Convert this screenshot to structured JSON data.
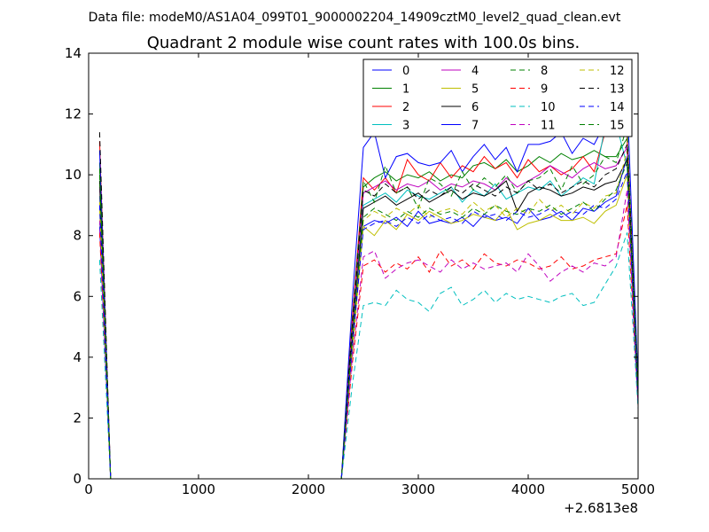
{
  "header": {
    "filename": "Data file: modeM0/AS1A04_099T01_9000002204_14909cztM0_level2_quad_clean.evt"
  },
  "chart_data": {
    "type": "line",
    "title": "Quadrant 2 module wise count rates with 100.0s bins.",
    "xlabel": "",
    "ylabel": "",
    "xlim": [
      0,
      5000
    ],
    "ylim": [
      0,
      14
    ],
    "xticks": [
      "0",
      "1000",
      "2000",
      "3000",
      "4000",
      "5000"
    ],
    "yticks": [
      "0",
      "2",
      "4",
      "6",
      "8",
      "10",
      "12",
      "14"
    ],
    "x_offset_label": "+2.6813e8",
    "grid": false,
    "legend": {
      "placement": "top-right",
      "columns": 4
    },
    "x": [
      100,
      200,
      300,
      400,
      500,
      600,
      700,
      800,
      900,
      1000,
      1100,
      1200,
      1300,
      1400,
      1500,
      1600,
      1700,
      1800,
      1900,
      2000,
      2100,
      2200,
      2300,
      2400,
      2500,
      2600,
      2700,
      2800,
      2900,
      3000,
      3100,
      3200,
      3300,
      3400,
      3500,
      3600,
      3700,
      3800,
      3900,
      4000,
      4100,
      4200,
      4300,
      4400,
      4500,
      4600,
      4700,
      4800,
      4900,
      5000
    ],
    "series": [
      {
        "name": "0",
        "color": "#0000ff",
        "dash": "solid",
        "values": [
          8.3,
          0,
          0,
          0,
          0,
          0,
          0,
          0,
          0,
          0,
          0,
          0,
          0,
          0,
          0,
          0,
          0,
          0,
          0,
          0,
          0,
          0,
          0,
          4.3,
          8.3,
          8.5,
          8.4,
          8.6,
          8.3,
          8.8,
          8.4,
          8.5,
          8.4,
          8.6,
          8.3,
          8.7,
          8.5,
          8.6,
          8.4,
          8.9,
          8.5,
          8.6,
          8.8,
          8.5,
          8.9,
          8.8,
          9.1,
          9.3,
          10.6,
          2.5
        ]
      },
      {
        "name": "1",
        "color": "#008000",
        "dash": "solid",
        "values": [
          10.4,
          0,
          0,
          0,
          0,
          0,
          0,
          0,
          0,
          0,
          0,
          0,
          0,
          0,
          0,
          0,
          0,
          0,
          0,
          0,
          0,
          0,
          0,
          5.3,
          9.6,
          9.9,
          10.1,
          9.8,
          10.0,
          9.9,
          10.1,
          9.8,
          10.0,
          9.9,
          10.3,
          10.4,
          10.2,
          10.5,
          10.1,
          10.3,
          10.6,
          10.4,
          10.7,
          10.5,
          10.6,
          10.8,
          10.6,
          10.6,
          11.2,
          2.8
        ]
      },
      {
        "name": "2",
        "color": "#ff0000",
        "dash": "solid",
        "values": [
          11.1,
          0,
          0,
          0,
          0,
          0,
          0,
          0,
          0,
          0,
          0,
          0,
          0,
          0,
          0,
          0,
          0,
          0,
          0,
          0,
          0,
          0,
          0,
          5.3,
          9.9,
          9.5,
          9.9,
          9.4,
          10.5,
          10.0,
          9.8,
          10.4,
          9.9,
          10.3,
          10.1,
          10.6,
          10.2,
          10.4,
          9.9,
          10.5,
          10.1,
          10.3,
          10.0,
          10.2,
          10.6,
          10.1,
          11.4,
          11.4,
          11.3,
          3.0
        ]
      },
      {
        "name": "3",
        "color": "#00bfbf",
        "dash": "solid",
        "values": [
          9.3,
          0,
          0,
          0,
          0,
          0,
          0,
          0,
          0,
          0,
          0,
          0,
          0,
          0,
          0,
          0,
          0,
          0,
          0,
          0,
          0,
          0,
          0,
          4.8,
          9.0,
          9.2,
          9.4,
          9.1,
          9.5,
          9.3,
          9.2,
          9.4,
          9.6,
          9.1,
          9.5,
          9.3,
          9.7,
          9.2,
          9.4,
          9.6,
          9.5,
          9.8,
          9.3,
          9.6,
          9.9,
          9.7,
          11.6,
          11.7,
          10.3,
          2.7
        ]
      },
      {
        "name": "4",
        "color": "#bf00bf",
        "dash": "solid",
        "values": [
          9.6,
          0,
          0,
          0,
          0,
          0,
          0,
          0,
          0,
          0,
          0,
          0,
          0,
          0,
          0,
          0,
          0,
          0,
          0,
          0,
          0,
          0,
          0,
          5.0,
          9.4,
          9.6,
          9.8,
          9.5,
          9.7,
          9.6,
          9.8,
          9.5,
          9.7,
          9.6,
          9.8,
          9.7,
          9.5,
          9.9,
          9.6,
          9.8,
          10.0,
          10.3,
          10.1,
          9.9,
          10.2,
          10.4,
          10.2,
          10.3,
          10.9,
          2.9
        ]
      },
      {
        "name": "5",
        "color": "#bfbf00",
        "dash": "solid",
        "values": [
          8.9,
          0,
          0,
          0,
          0,
          0,
          0,
          0,
          0,
          0,
          0,
          0,
          0,
          0,
          0,
          0,
          0,
          0,
          0,
          0,
          0,
          0,
          0,
          4.2,
          8.3,
          8.0,
          8.5,
          8.2,
          8.7,
          8.5,
          8.8,
          8.6,
          8.4,
          8.5,
          8.7,
          8.6,
          8.5,
          8.9,
          8.2,
          8.4,
          8.5,
          8.7,
          8.5,
          8.5,
          8.6,
          8.4,
          8.8,
          9.0,
          10.0,
          2.6
        ]
      },
      {
        "name": "6",
        "color": "#000000",
        "dash": "solid",
        "values": [
          9.8,
          0,
          0,
          0,
          0,
          0,
          0,
          0,
          0,
          0,
          0,
          0,
          0,
          0,
          0,
          0,
          0,
          0,
          0,
          0,
          0,
          0,
          0,
          4.6,
          8.9,
          9.1,
          9.3,
          9.0,
          9.2,
          9.4,
          9.1,
          9.3,
          9.5,
          9.2,
          9.4,
          9.3,
          9.5,
          9.8,
          8.8,
          9.4,
          9.6,
          9.5,
          9.3,
          9.4,
          9.6,
          9.5,
          9.7,
          9.8,
          10.5,
          2.7
        ]
      },
      {
        "name": "7",
        "color": "#0000ff",
        "dash": "solid",
        "values": [
          10.8,
          0,
          0,
          0,
          0,
          0,
          0,
          0,
          0,
          0,
          0,
          0,
          0,
          0,
          0,
          0,
          0,
          0,
          0,
          0,
          0,
          0,
          0,
          5.9,
          10.9,
          11.4,
          9.9,
          10.6,
          10.7,
          10.4,
          10.3,
          10.4,
          10.8,
          10.1,
          10.6,
          11.0,
          10.5,
          10.9,
          10.1,
          11.0,
          11.0,
          11.1,
          11.4,
          10.7,
          11.2,
          11.0,
          11.7,
          11.8,
          12.6,
          3.2
        ]
      },
      {
        "name": "8",
        "color": "#008000",
        "dash": "dashed",
        "values": [
          10.2,
          0,
          0,
          0,
          0,
          0,
          0,
          0,
          0,
          0,
          0,
          0,
          0,
          0,
          0,
          0,
          0,
          0,
          0,
          0,
          0,
          0,
          0,
          5.2,
          9.8,
          9.1,
          10.3,
          9.4,
          9.6,
          8.9,
          9.9,
          9.7,
          9.3,
          10.1,
          9.5,
          9.9,
          9.6,
          10.0,
          9.4,
          9.8,
          9.9,
          10.2,
          9.5,
          10.3,
          9.7,
          10.0,
          10.6,
          10.4,
          11.6,
          3.0
        ]
      },
      {
        "name": "9",
        "color": "#ff0000",
        "dash": "dashed",
        "values": [
          8.1,
          0,
          0,
          0,
          0,
          0,
          0,
          0,
          0,
          0,
          0,
          0,
          0,
          0,
          0,
          0,
          0,
          0,
          0,
          0,
          0,
          0,
          0,
          3.8,
          7.0,
          7.2,
          6.8,
          7.1,
          6.9,
          7.3,
          6.8,
          7.5,
          7.0,
          7.2,
          6.9,
          7.4,
          7.1,
          7.0,
          7.2,
          7.1,
          6.9,
          7.0,
          7.3,
          6.9,
          7.0,
          7.2,
          7.3,
          7.4,
          9.0,
          2.4
        ]
      },
      {
        "name": "10",
        "color": "#00bfbf",
        "dash": "dashed",
        "values": [
          7.2,
          0,
          0,
          0,
          0,
          0,
          0,
          0,
          0,
          0,
          0,
          0,
          0,
          0,
          0,
          0,
          0,
          0,
          0,
          0,
          0,
          0,
          0,
          3.1,
          5.7,
          5.8,
          5.7,
          6.2,
          5.9,
          5.8,
          5.5,
          6.1,
          6.3,
          5.7,
          5.9,
          6.2,
          5.8,
          6.1,
          5.9,
          6.0,
          5.9,
          5.8,
          6.0,
          6.1,
          5.7,
          5.8,
          6.4,
          7.0,
          8.1,
          2.3
        ]
      },
      {
        "name": "11",
        "color": "#bf00bf",
        "dash": "dashed",
        "values": [
          8.5,
          0,
          0,
          0,
          0,
          0,
          0,
          0,
          0,
          0,
          0,
          0,
          0,
          0,
          0,
          0,
          0,
          0,
          0,
          0,
          0,
          0,
          0,
          4.0,
          7.3,
          7.5,
          6.6,
          6.9,
          7.1,
          7.2,
          7.0,
          6.8,
          7.2,
          6.9,
          7.1,
          6.9,
          7.0,
          7.1,
          6.8,
          7.4,
          7.0,
          6.5,
          6.8,
          7.0,
          6.8,
          7.1,
          7.0,
          7.3,
          9.5,
          2.5
        ]
      },
      {
        "name": "12",
        "color": "#bfbf00",
        "dash": "dashed",
        "values": [
          9.1,
          0,
          0,
          0,
          0,
          0,
          0,
          0,
          0,
          0,
          0,
          0,
          0,
          0,
          0,
          0,
          0,
          0,
          0,
          0,
          0,
          0,
          0,
          4.5,
          8.5,
          8.8,
          8.6,
          8.9,
          8.7,
          9.0,
          8.6,
          8.8,
          8.9,
          8.7,
          9.1,
          8.8,
          9.0,
          8.6,
          8.9,
          8.7,
          9.2,
          8.8,
          9.0,
          8.7,
          9.1,
          8.9,
          9.3,
          9.4,
          10.8,
          2.8
        ]
      },
      {
        "name": "13",
        "color": "#000000",
        "dash": "dashed",
        "values": [
          11.4,
          0,
          0,
          0,
          0,
          0,
          0,
          0,
          0,
          0,
          0,
          0,
          0,
          0,
          0,
          0,
          0,
          0,
          0,
          0,
          0,
          0,
          0,
          5.1,
          9.5,
          9.3,
          9.7,
          9.4,
          9.6,
          9.2,
          9.5,
          9.3,
          9.6,
          9.4,
          9.7,
          9.5,
          9.3,
          9.6,
          9.4,
          9.8,
          9.5,
          9.7,
          9.4,
          9.6,
          9.8,
          9.6,
          10.0,
          10.2,
          11.0,
          2.9
        ]
      },
      {
        "name": "14",
        "color": "#0000ff",
        "dash": "dashed",
        "values": [
          9.0,
          0,
          0,
          0,
          0,
          0,
          0,
          0,
          0,
          0,
          0,
          0,
          0,
          0,
          0,
          0,
          0,
          0,
          0,
          0,
          0,
          0,
          0,
          4.4,
          8.2,
          8.4,
          8.5,
          8.3,
          8.6,
          8.4,
          8.7,
          8.5,
          8.6,
          8.4,
          8.8,
          8.6,
          8.7,
          8.5,
          8.8,
          8.6,
          8.7,
          8.9,
          8.6,
          8.8,
          8.7,
          9.0,
          8.9,
          9.2,
          10.1,
          2.6
        ]
      },
      {
        "name": "15",
        "color": "#008000",
        "dash": "dashed",
        "values": [
          10.0,
          0,
          0,
          0,
          0,
          0,
          0,
          0,
          0,
          0,
          0,
          0,
          0,
          0,
          0,
          0,
          0,
          0,
          0,
          0,
          0,
          0,
          0,
          4.7,
          8.6,
          8.9,
          8.7,
          8.5,
          8.8,
          8.6,
          8.9,
          8.7,
          8.8,
          8.6,
          8.9,
          8.7,
          9.0,
          8.8,
          8.7,
          8.9,
          8.8,
          9.0,
          8.7,
          8.9,
          9.1,
          8.8,
          9.2,
          9.5,
          10.4,
          2.7
        ]
      }
    ]
  }
}
